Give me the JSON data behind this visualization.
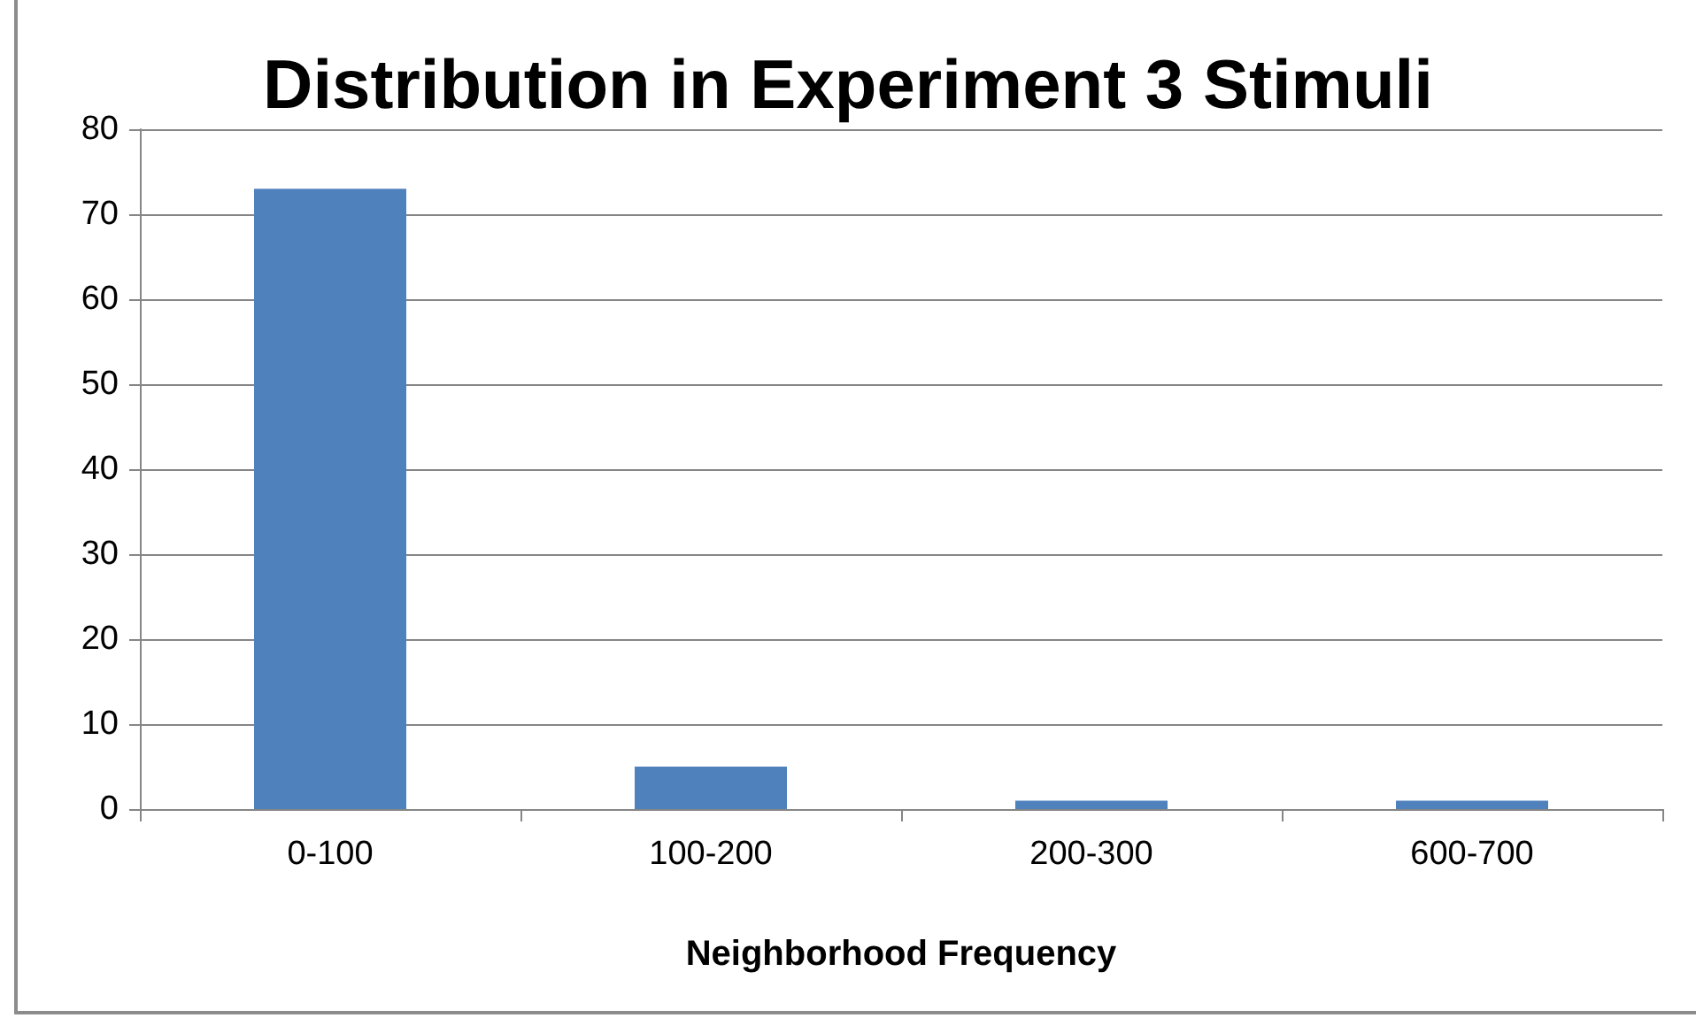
{
  "chart_data": {
    "type": "bar",
    "title": "Distribution in Experiment 3 Stimuli",
    "xlabel": "Neighborhood Frequency",
    "categories": [
      "0-100",
      "100-200",
      "200-300",
      "600-700"
    ],
    "values": [
      73,
      5,
      1,
      1
    ],
    "color": "#4f81bd",
    "ylim": [
      0,
      80
    ],
    "yticks": [
      0,
      10,
      20,
      30,
      40,
      50,
      60,
      70,
      80
    ],
    "grid": "y"
  }
}
